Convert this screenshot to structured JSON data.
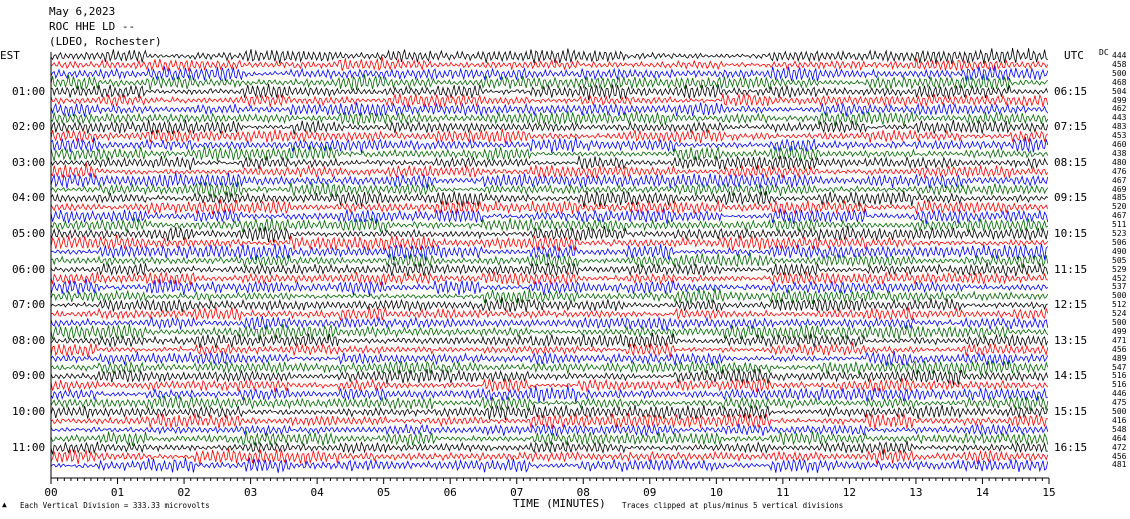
{
  "header": {
    "line1": "May 6,2023",
    "line2": "ROC HHE LD --",
    "line3": "(LDEO, Rochester)"
  },
  "left_label": "EST",
  "right_label": "UTC",
  "dc_label": "DC",
  "colors": {
    "trace_cycle": [
      "#000000",
      "#ff0000",
      "#0000ff",
      "#006600"
    ]
  },
  "chart_data": {
    "type": "line",
    "title": "",
    "xlabel": "TIME (MINUTES)",
    "ylabel": "",
    "xlim": [
      0,
      15
    ],
    "x_ticks": [
      "00",
      "01",
      "02",
      "03",
      "04",
      "05",
      "06",
      "07",
      "08",
      "09",
      "10",
      "11",
      "12",
      "13",
      "14",
      "15"
    ],
    "rows_per_hour": 4,
    "minutes_per_row": 15,
    "est_hour_labels": [
      "01:00",
      "02:00",
      "03:00",
      "04:00",
      "05:00",
      "06:00",
      "07:00",
      "08:00",
      "09:00",
      "10:00",
      "11:00"
    ],
    "utc_hour_labels": [
      "06:15",
      "07:15",
      "08:15",
      "09:15",
      "10:15",
      "11:15",
      "12:15",
      "13:15",
      "14:15",
      "15:15",
      "16:15"
    ],
    "dc_offsets": [
      444,
      458,
      500,
      468,
      504,
      499,
      462,
      443,
      483,
      453,
      460,
      438,
      480,
      476,
      467,
      469,
      485,
      520,
      467,
      511,
      523,
      506,
      490,
      505,
      529,
      452,
      537,
      500,
      512,
      524,
      500,
      499,
      471,
      456,
      489,
      547,
      516,
      516,
      446,
      475,
      500,
      416,
      548,
      464,
      472,
      456,
      481
    ],
    "footer_left": "Each Vertical Division =  333.33 microvolts",
    "footer_right": "Traces clipped at plus/minus 5 vertical divisions"
  }
}
